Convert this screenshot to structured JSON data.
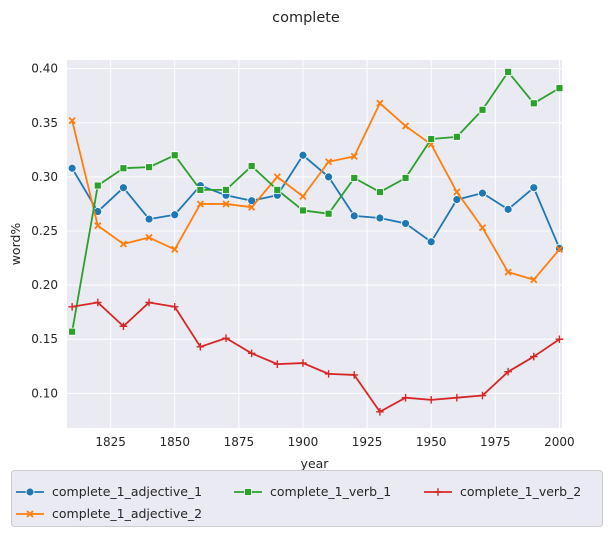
{
  "chart_data": {
    "type": "line",
    "title": "complete",
    "xlabel": "year",
    "ylabel": "word%",
    "xlim": [
      1808,
      2001
    ],
    "ylim": [
      0.068,
      0.408
    ],
    "xticks": [
      1825,
      1850,
      1875,
      1900,
      1925,
      1950,
      1975,
      2000
    ],
    "yticks": [
      0.1,
      0.15,
      0.2,
      0.25,
      0.3,
      0.35,
      0.4
    ],
    "ytick_labels": [
      "0.10",
      "0.15",
      "0.20",
      "0.25",
      "0.30",
      "0.35",
      "0.40"
    ],
    "grid": true,
    "legend_position": "bottom",
    "x": [
      1810,
      1820,
      1830,
      1840,
      1850,
      1860,
      1870,
      1880,
      1890,
      1900,
      1910,
      1920,
      1930,
      1940,
      1950,
      1960,
      1970,
      1980,
      1990,
      2000
    ],
    "series": [
      {
        "name": "complete_1_adjective_1",
        "color": "#1f77b4",
        "marker": "circle",
        "values": [
          0.308,
          0.268,
          0.29,
          0.261,
          0.265,
          0.292,
          0.283,
          0.278,
          0.283,
          0.32,
          0.3,
          0.264,
          0.262,
          0.257,
          0.24,
          0.279,
          0.285,
          0.27,
          0.29,
          0.234
        ]
      },
      {
        "name": "complete_1_adjective_2",
        "color": "#ff7f0e",
        "marker": "x",
        "values": [
          0.352,
          0.255,
          0.238,
          0.244,
          0.233,
          0.275,
          0.275,
          0.272,
          0.3,
          0.282,
          0.314,
          0.319,
          0.368,
          0.347,
          0.33,
          0.286,
          0.253,
          0.212,
          0.205,
          0.233
        ]
      },
      {
        "name": "complete_1_verb_1",
        "color": "#2ca02c",
        "marker": "square",
        "values": [
          0.157,
          0.292,
          0.308,
          0.309,
          0.32,
          0.288,
          0.288,
          0.31,
          0.288,
          0.269,
          0.266,
          0.299,
          0.286,
          0.299,
          0.335,
          0.337,
          0.362,
          0.397,
          0.368,
          0.382
        ]
      },
      {
        "name": "complete_1_verb_2",
        "color": "#d62728",
        "marker": "plus",
        "values": [
          0.18,
          0.184,
          0.162,
          0.184,
          0.18,
          0.143,
          0.151,
          0.137,
          0.127,
          0.128,
          0.118,
          0.117,
          0.083,
          0.096,
          0.094,
          0.096,
          0.098,
          0.12,
          0.134,
          0.15
        ]
      }
    ]
  }
}
